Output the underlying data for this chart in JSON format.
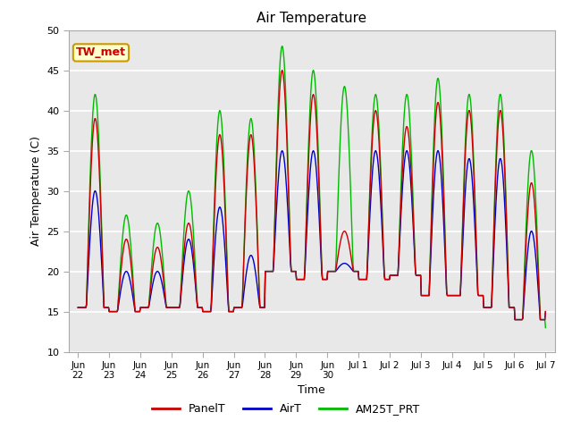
{
  "title": "Air Temperature",
  "xlabel": "Time",
  "ylabel": "Air Temperature (C)",
  "ylim": [
    10,
    50
  ],
  "annotation": "TW_met",
  "annotation_color": "#cc0000",
  "annotation_bg": "#ffffcc",
  "annotation_border": "#cc9900",
  "background_color": "#e8e8e8",
  "grid_color": "#ffffff",
  "series": {
    "PanelT": {
      "color": "#cc0000",
      "linewidth": 1.0
    },
    "AirT": {
      "color": "#0000cc",
      "linewidth": 1.0
    },
    "AM25T_PRT": {
      "color": "#00bb00",
      "linewidth": 1.0
    }
  },
  "x_tick_labels": [
    "Jun\n22",
    "Jun\n23",
    "Jun\n24",
    "Jun\n25",
    "Jun\n26",
    "Jun\n27",
    "Jun\n28",
    "Jun\n29",
    "Jun\n30",
    "Jul 1",
    "Jul 2",
    "Jul 3",
    "Jul 4",
    "Jul 5",
    "Jul 6",
    "Jul 7"
  ],
  "x_tick_positions": [
    0,
    1,
    2,
    3,
    4,
    5,
    6,
    7,
    8,
    9,
    10,
    11,
    12,
    13,
    14,
    15
  ],
  "y_ticks": [
    10,
    15,
    20,
    25,
    30,
    35,
    40,
    45,
    50
  ],
  "legend_entries": [
    "PanelT",
    "AirT",
    "AM25T_PRT"
  ],
  "legend_colors": [
    "#cc0000",
    "#0000cc",
    "#00bb00"
  ],
  "day_params": [
    [
      0,
      15.5,
      39,
      30,
      42
    ],
    [
      1,
      15.0,
      24,
      20,
      27
    ],
    [
      2,
      15.5,
      23,
      20,
      26
    ],
    [
      3,
      15.5,
      26,
      24,
      30
    ],
    [
      4,
      15.0,
      37,
      28,
      40
    ],
    [
      5,
      15.5,
      37,
      22,
      39
    ],
    [
      6,
      20.0,
      45,
      35,
      48
    ],
    [
      7,
      19.0,
      42,
      35,
      45
    ],
    [
      8,
      20.0,
      25,
      21,
      43
    ],
    [
      9,
      19.0,
      40,
      35,
      42
    ],
    [
      10,
      19.5,
      38,
      35,
      42
    ],
    [
      11,
      17.0,
      41,
      35,
      44
    ],
    [
      12,
      17.0,
      40,
      34,
      42
    ],
    [
      13,
      15.5,
      40,
      34,
      42
    ],
    [
      14,
      14.0,
      31,
      25,
      35
    ]
  ]
}
